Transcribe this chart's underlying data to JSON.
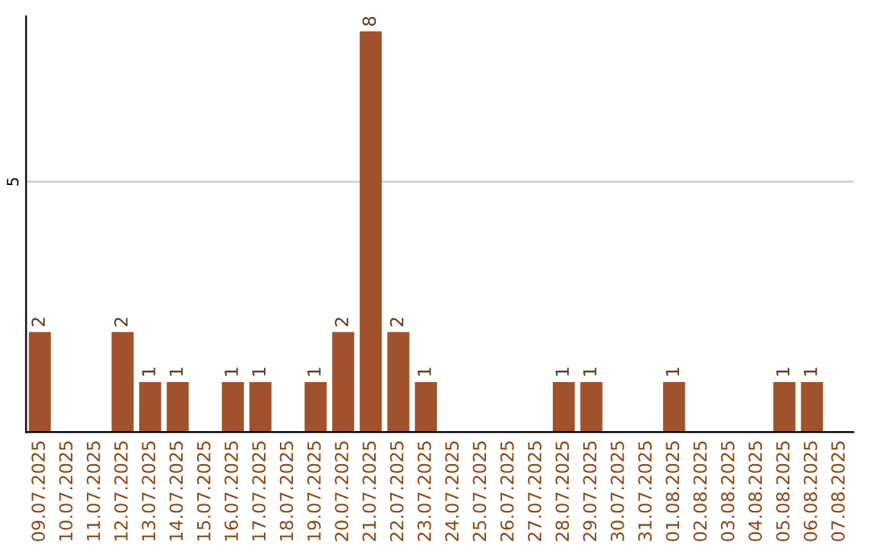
{
  "chart_data": {
    "type": "bar",
    "categories": [
      "09.07.2025",
      "10.07.2025",
      "11.07.2025",
      "12.07.2025",
      "13.07.2025",
      "14.07.2025",
      "15.07.2025",
      "16.07.2025",
      "17.07.2025",
      "18.07.2025",
      "19.07.2025",
      "20.07.2025",
      "21.07.2025",
      "22.07.2025",
      "23.07.2025",
      "24.07.2025",
      "25.07.2025",
      "26.07.2025",
      "27.07.2025",
      "28.07.2025",
      "29.07.2025",
      "30.07.2025",
      "31.07.2025",
      "01.08.2025",
      "02.08.2025",
      "03.08.2025",
      "04.08.2025",
      "05.08.2025",
      "06.08.2025",
      "07.08.2025"
    ],
    "values": [
      2,
      0,
      0,
      2,
      1,
      1,
      0,
      1,
      1,
      0,
      1,
      2,
      8,
      2,
      1,
      0,
      0,
      0,
      0,
      1,
      1,
      0,
      0,
      1,
      0,
      0,
      0,
      1,
      1,
      0
    ],
    "value_labels": [
      "2",
      null,
      null,
      "2",
      "1",
      "1",
      null,
      "1",
      "1",
      null,
      "1",
      "2",
      "8",
      "2",
      "1",
      null,
      null,
      null,
      null,
      "1",
      "1",
      null,
      null,
      "1",
      null,
      null,
      null,
      "1",
      "1",
      null
    ],
    "color": "#a0522d",
    "ylim": [
      0,
      8.3
    ],
    "yticks": [
      5
    ],
    "grid": "y",
    "legend": false
  }
}
